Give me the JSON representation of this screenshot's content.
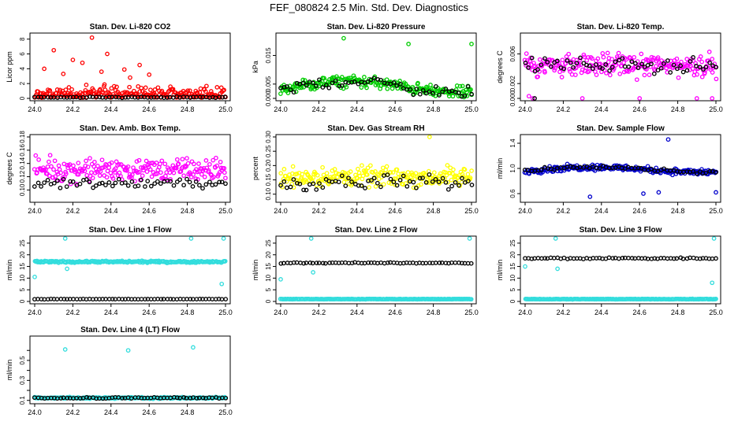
{
  "page_title": "FEF_080824  2.5 Min. Std. Dev. Diagnostics",
  "chart_data": [
    {
      "type": "scatter",
      "title": "Stan. Dev. Li-820 CO2",
      "ylabel": "Licor ppm",
      "xlim": [
        24.0,
        25.0
      ],
      "ylim": [
        0,
        8.5
      ],
      "yticks": [
        0,
        2,
        4,
        6,
        8
      ],
      "color": "#ff0000",
      "series": [
        {
          "color": "#ff0000",
          "base": 1.0,
          "spread": 1.2,
          "outliers": [
            [
              24.1,
              6.5
            ],
            [
              24.2,
              5.2
            ],
            [
              24.3,
              8.2
            ],
            [
              24.38,
              6.0
            ],
            [
              24.47,
              3.9
            ],
            [
              24.55,
              4.5
            ],
            [
              24.6,
              3.2
            ],
            [
              24.05,
              4.0
            ],
            [
              24.15,
              3.3
            ],
            [
              24.25,
              4.8
            ],
            [
              24.35,
              3.6
            ],
            [
              24.5,
              2.8
            ]
          ]
        },
        {
          "color": "#000000",
          "base": 0.15,
          "spread": 0.12,
          "outliers": []
        }
      ]
    },
    {
      "type": "scatter",
      "title": "Stan. Dev. Li-820 Pressure",
      "ylabel": "kPa",
      "xlim": [
        24.0,
        25.0
      ],
      "ylim": [
        0,
        0.022
      ],
      "yticks": [
        0.0,
        0.005,
        0.015
      ],
      "yticklabels": [
        "0.000",
        "0.005",
        "0.015"
      ],
      "series": [
        {
          "color": "#00cc00",
          "base": 0.004,
          "spread": 0.003,
          "wave": 0.002,
          "outliers": [
            [
              24.33,
              0.021
            ],
            [
              24.67,
              0.019
            ],
            [
              25.0,
              0.019
            ]
          ]
        },
        {
          "color": "#000000",
          "base": 0.004,
          "spread": 0.003,
          "wave": 0.002,
          "outliers": []
        }
      ]
    },
    {
      "type": "scatter",
      "title": "Stan. Dev. Li-820 Temp.",
      "ylabel": "degrees C",
      "xlim": [
        24.0,
        25.0
      ],
      "ylim": [
        0,
        0.0085
      ],
      "yticks": [
        0.0,
        0.002,
        0.006
      ],
      "yticklabels": [
        "0.000",
        "0.002",
        "0.006"
      ],
      "series": [
        {
          "color": "#ff00ff",
          "base": 0.0045,
          "spread": 0.0022,
          "outliers": [
            [
              24.04,
              0.0
            ],
            [
              24.3,
              0.0
            ],
            [
              24.6,
              0.0
            ],
            [
              24.9,
              0.0
            ],
            [
              24.98,
              0.0
            ],
            [
              24.02,
              0.0003
            ]
          ]
        },
        {
          "color": "#000000",
          "base": 0.0045,
          "spread": 0.0015,
          "outliers": [
            [
              24.05,
              0.0
            ]
          ]
        }
      ]
    },
    {
      "type": "scatter",
      "title": "Stan. Dev. Amb. Box Temp.",
      "ylabel": "degrees C",
      "xlim": [
        24.0,
        25.0
      ],
      "ylim": [
        0.085,
        0.18
      ],
      "yticks": [
        0.1,
        0.12,
        0.14,
        0.16,
        0.18
      ],
      "yticklabels": [
        "0.10",
        "0.12",
        "0.14",
        "0.16",
        "0.18"
      ],
      "series": [
        {
          "color": "#ff00ff",
          "base": 0.13,
          "spread": 0.025,
          "outliers": []
        },
        {
          "color": "#000000",
          "base": 0.11,
          "spread": 0.01,
          "outliers": []
        }
      ]
    },
    {
      "type": "scatter",
      "title": "Stan. Dev. Gas Stream RH",
      "ylabel": "percent",
      "xlim": [
        24.0,
        25.0
      ],
      "ylim": [
        0.08,
        0.3
      ],
      "yticks": [
        0.1,
        0.15,
        0.2,
        0.25,
        0.3
      ],
      "yticklabels": [
        "0.10",
        "0.15",
        "0.20",
        "0.25",
        "0.30"
      ],
      "series": [
        {
          "color": "#ffff00",
          "base": 0.16,
          "spread": 0.05,
          "outliers": [
            [
              24.78,
              0.3
            ]
          ]
        },
        {
          "color": "#000000",
          "base": 0.14,
          "spread": 0.04,
          "outliers": []
        }
      ]
    },
    {
      "type": "scatter",
      "title": "Stan. Dev. Sample Flow",
      "ylabel": "ml/min",
      "xlim": [
        24.0,
        25.0
      ],
      "ylim": [
        0.5,
        1.5
      ],
      "yticks": [
        0.6,
        1.0,
        1.4
      ],
      "yticklabels": [
        "0.6",
        "1.0",
        "1.4"
      ],
      "series": [
        {
          "color": "#0000cc",
          "base": 0.98,
          "spread": 0.07,
          "wave": 0.04,
          "outliers": [
            [
              24.34,
              0.55
            ],
            [
              24.75,
              1.46
            ],
            [
              24.7,
              0.62
            ],
            [
              25.0,
              0.62
            ],
            [
              24.62,
              0.6
            ]
          ]
        },
        {
          "color": "#000000",
          "base": 0.98,
          "spread": 0.04,
          "wave": 0.04,
          "outliers": []
        }
      ]
    },
    {
      "type": "scatter",
      "title": "Stan. Dev. Line 1 Flow",
      "ylabel": "ml/min",
      "xlim": [
        24.0,
        25.0
      ],
      "ylim": [
        0,
        27
      ],
      "yticks": [
        0,
        5,
        10,
        15,
        20,
        25
      ],
      "series": [
        {
          "color": "#33dddd",
          "base": 17.0,
          "spread": 0.6,
          "outliers": [
            [
              24.16,
              27
            ],
            [
              24.82,
              27
            ],
            [
              24.99,
              27
            ],
            [
              24.0,
              10.5
            ],
            [
              24.98,
              7.5
            ],
            [
              24.17,
              14.0
            ]
          ]
        },
        {
          "color": "#000000",
          "base": 1.0,
          "spread": 0.1,
          "outliers": []
        }
      ]
    },
    {
      "type": "scatter",
      "title": "Stan. Dev. Line 2 Flow",
      "ylabel": "ml/min",
      "xlim": [
        24.0,
        25.0
      ],
      "ylim": [
        0,
        27
      ],
      "yticks": [
        0,
        5,
        10,
        15,
        20,
        25
      ],
      "series": [
        {
          "color": "#33dddd",
          "base": 1.0,
          "spread": 0.15,
          "outliers": [
            [
              24.0,
              9.5
            ],
            [
              24.16,
              27
            ],
            [
              24.99,
              27
            ],
            [
              24.17,
              12.5
            ]
          ]
        },
        {
          "color": "#000000",
          "base": 16.5,
          "spread": 0.4,
          "outliers": []
        }
      ]
    },
    {
      "type": "scatter",
      "title": "Stan. Dev. Line 3 Flow",
      "ylabel": "ml/min",
      "xlim": [
        24.0,
        25.0
      ],
      "ylim": [
        0,
        27
      ],
      "yticks": [
        0,
        5,
        10,
        15,
        20,
        25
      ],
      "series": [
        {
          "color": "#33dddd",
          "base": 1.0,
          "spread": 0.15,
          "outliers": [
            [
              24.16,
              27
            ],
            [
              24.99,
              27
            ],
            [
              24.98,
              8.0
            ],
            [
              24.17,
              14.0
            ],
            [
              24.0,
              15.0
            ]
          ]
        },
        {
          "color": "#000000",
          "base": 18.5,
          "spread": 0.5,
          "outliers": []
        }
      ]
    },
    {
      "type": "scatter",
      "title": "Stan. Dev. Line 4 (LT) Flow",
      "ylabel": "ml/min",
      "xlim": [
        24.0,
        25.0
      ],
      "ylim": [
        0.09,
        0.72
      ],
      "yticks": [
        0.1,
        0.3,
        0.5
      ],
      "yticklabels": [
        "0.1",
        "0.3",
        "0.5"
      ],
      "extra_ticks": [
        0.2,
        0.4,
        0.6
      ],
      "series": [
        {
          "color": "#33dddd",
          "base": 0.125,
          "spread": 0.012,
          "outliers": [
            [
              24.16,
              0.61
            ],
            [
              24.49,
              0.6
            ],
            [
              24.83,
              0.63
            ]
          ]
        },
        {
          "color": "#000000",
          "base": 0.125,
          "spread": 0.01,
          "outliers": []
        }
      ]
    }
  ],
  "x_tick_labels": [
    "24.0",
    "24.2",
    "24.4",
    "24.6",
    "24.8",
    "25.0"
  ]
}
